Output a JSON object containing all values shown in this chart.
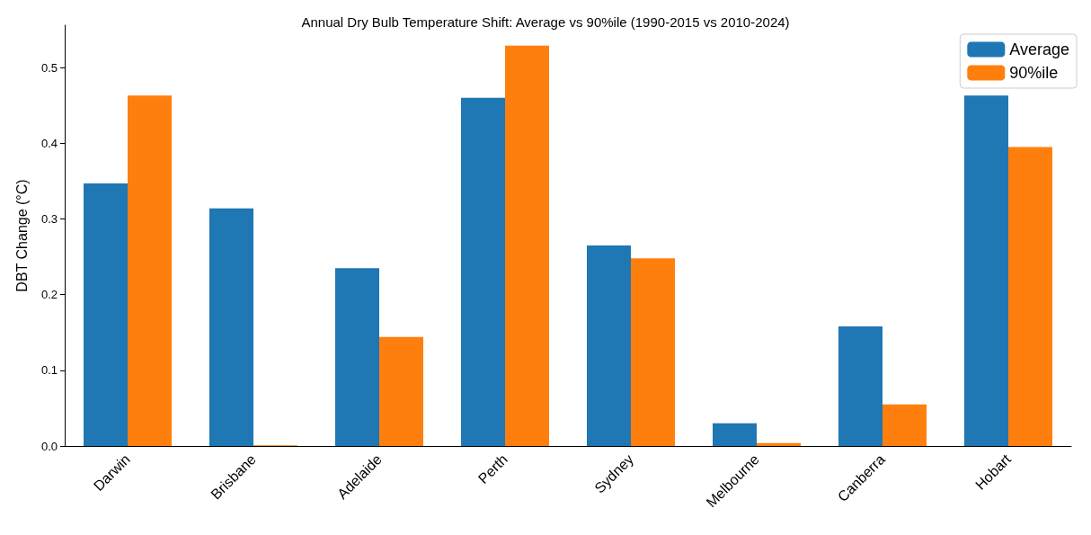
{
  "chart_data": {
    "type": "bar",
    "title": "Annual Dry Bulb Temperature Shift: Average vs 90%ile (1990-2015 vs 2010-2024)",
    "ylabel": "DBT Change (°C)",
    "categories": [
      "Darwin",
      "Brisbane",
      "Adelaide",
      "Perth",
      "Sydney",
      "Melbourne",
      "Canberra",
      "Hobart"
    ],
    "series": [
      {
        "name": "Average",
        "color": "#1f77b4",
        "values": [
          0.347,
          0.314,
          0.235,
          0.46,
          0.265,
          0.03,
          0.158,
          0.463
        ]
      },
      {
        "name": "90%ile",
        "color": "#ff7f0e",
        "values": [
          0.463,
          0.001,
          0.144,
          0.529,
          0.248,
          0.004,
          0.055,
          0.395
        ]
      }
    ],
    "ylim": [
      0,
      0.556
    ],
    "yticks": [
      {
        "value": 0,
        "label": "0.0"
      },
      0.1,
      0.2,
      0.3,
      0.4,
      0.5
    ],
    "grid": false,
    "legend": "top right"
  }
}
